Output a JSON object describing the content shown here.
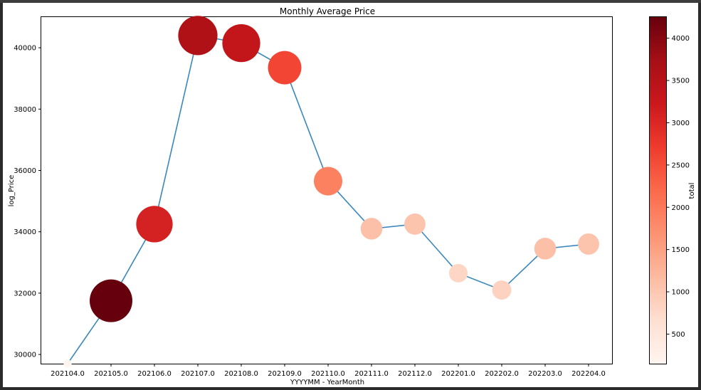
{
  "chart_data": {
    "type": "scatter",
    "title": "Monthly Average Price",
    "xlabel": "YYYYMM - YearMonth",
    "ylabel": "log_Price",
    "x_tick_labels": [
      "202104.0",
      "202105.0",
      "202106.0",
      "202107.0",
      "202108.0",
      "202109.0",
      "202110.0",
      "202111.0",
      "202112.0",
      "202201.0",
      "202202.0",
      "202203.0",
      "202204.0"
    ],
    "y_ticks": [
      30000,
      32000,
      34000,
      36000,
      38000,
      40000
    ],
    "ylim": [
      29700,
      41000
    ],
    "grid": false,
    "line_color": "#3a87bd",
    "series": [
      {
        "points": [
          {
            "x": "202104.0",
            "price": 29700,
            "total": 150
          },
          {
            "x": "202105.0",
            "price": 31750,
            "total": 4250
          },
          {
            "x": "202106.0",
            "price": 34250,
            "total": 3100
          },
          {
            "x": "202107.0",
            "price": 40400,
            "total": 3600
          },
          {
            "x": "202108.0",
            "price": 40150,
            "total": 3350
          },
          {
            "x": "202109.0",
            "price": 39350,
            "total": 2600
          },
          {
            "x": "202110.0",
            "price": 35650,
            "total": 1900
          },
          {
            "x": "202111.0",
            "price": 34100,
            "total": 1100
          },
          {
            "x": "202112.0",
            "price": 34250,
            "total": 1050
          },
          {
            "x": "202201.0",
            "price": 32650,
            "total": 800
          },
          {
            "x": "202202.0",
            "price": 32100,
            "total": 850
          },
          {
            "x": "202203.0",
            "price": 33450,
            "total": 1100
          },
          {
            "x": "202204.0",
            "price": 33600,
            "total": 1050
          }
        ]
      }
    ],
    "colorbar": {
      "label": "total",
      "colormap": "Reds",
      "range": [
        150,
        4250
      ],
      "ticks": [
        500,
        1000,
        1500,
        2000,
        2500,
        3000,
        3500,
        4000
      ]
    }
  }
}
